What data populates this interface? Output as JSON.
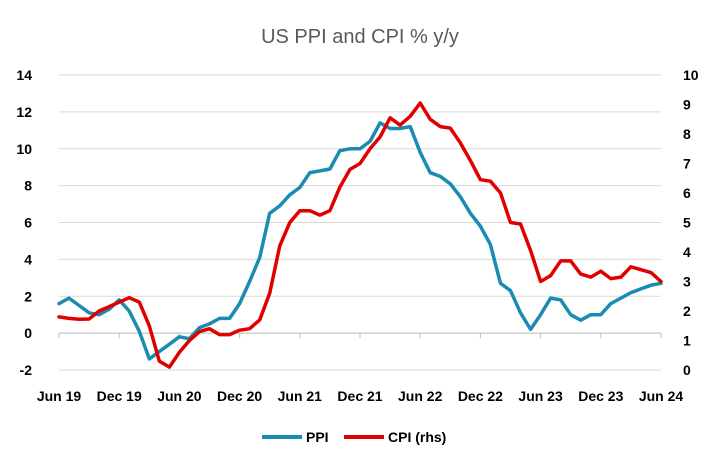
{
  "chart_data": {
    "type": "line",
    "title": "US PPI and CPI % y/y",
    "x_tick_labels": [
      "Jun 19",
      "Dec 19",
      "Jun 20",
      "Dec 20",
      "Jun 21",
      "Dec 21",
      "Jun 22",
      "Dec 22",
      "Jun 23",
      "Dec 23",
      "Jun 24"
    ],
    "left_axis": {
      "ylim": [
        -2,
        14
      ],
      "ticks": [
        -2,
        0,
        2,
        4,
        6,
        8,
        10,
        12,
        14
      ]
    },
    "right_axis": {
      "ylim": [
        0,
        10
      ],
      "ticks": [
        0,
        1,
        2,
        3,
        4,
        5,
        6,
        7,
        8,
        9,
        10
      ]
    },
    "legend_position": "bottom",
    "gridlines": "horizontal",
    "x": [
      "2019-06",
      "2019-07",
      "2019-08",
      "2019-09",
      "2019-10",
      "2019-11",
      "2019-12",
      "2020-01",
      "2020-02",
      "2020-03",
      "2020-04",
      "2020-05",
      "2020-06",
      "2020-07",
      "2020-08",
      "2020-09",
      "2020-10",
      "2020-11",
      "2020-12",
      "2021-01",
      "2021-02",
      "2021-03",
      "2021-04",
      "2021-05",
      "2021-06",
      "2021-07",
      "2021-08",
      "2021-09",
      "2021-10",
      "2021-11",
      "2021-12",
      "2022-01",
      "2022-02",
      "2022-03",
      "2022-04",
      "2022-05",
      "2022-06",
      "2022-07",
      "2022-08",
      "2022-09",
      "2022-10",
      "2022-11",
      "2022-12",
      "2023-01",
      "2023-02",
      "2023-03",
      "2023-04",
      "2023-05",
      "2023-06",
      "2023-07",
      "2023-08",
      "2023-09",
      "2023-10",
      "2023-11",
      "2023-12",
      "2024-01",
      "2024-02",
      "2024-03",
      "2024-04",
      "2024-05",
      "2024-06"
    ],
    "series": [
      {
        "name": "PPI",
        "axis": "left",
        "color": "#1A8BB1",
        "values": [
          1.6,
          1.9,
          1.5,
          1.1,
          1.0,
          1.3,
          1.8,
          1.2,
          0.1,
          -1.4,
          -1.0,
          -0.6,
          -0.2,
          -0.3,
          0.3,
          0.5,
          0.8,
          0.8,
          1.6,
          2.8,
          4.1,
          6.5,
          6.9,
          7.5,
          7.9,
          8.7,
          8.8,
          8.9,
          9.9,
          10.0,
          10.0,
          10.4,
          11.4,
          11.1,
          11.1,
          11.2,
          9.8,
          8.7,
          8.5,
          8.1,
          7.4,
          6.5,
          5.8,
          4.8,
          2.7,
          2.3,
          1.1,
          0.2,
          1.0,
          1.9,
          1.8,
          1.0,
          0.7,
          1.0,
          1.0,
          1.6,
          1.9,
          2.2,
          2.4,
          2.6,
          2.7
        ]
      },
      {
        "name": "CPI (rhs)",
        "axis": "right",
        "color": "#E00000",
        "values": [
          1.8,
          1.75,
          1.72,
          1.73,
          2.0,
          2.15,
          2.3,
          2.45,
          2.3,
          1.5,
          0.3,
          0.1,
          0.6,
          1.0,
          1.3,
          1.4,
          1.2,
          1.2,
          1.35,
          1.4,
          1.7,
          2.6,
          4.2,
          5.0,
          5.4,
          5.4,
          5.25,
          5.4,
          6.2,
          6.8,
          7.0,
          7.5,
          7.9,
          8.55,
          8.3,
          8.6,
          9.05,
          8.5,
          8.25,
          8.2,
          7.7,
          7.1,
          6.45,
          6.4,
          6.0,
          5.0,
          4.95,
          4.05,
          3.0,
          3.2,
          3.7,
          3.7,
          3.25,
          3.15,
          3.35,
          3.1,
          3.15,
          3.5,
          3.4,
          3.3,
          3.0
        ]
      }
    ]
  }
}
